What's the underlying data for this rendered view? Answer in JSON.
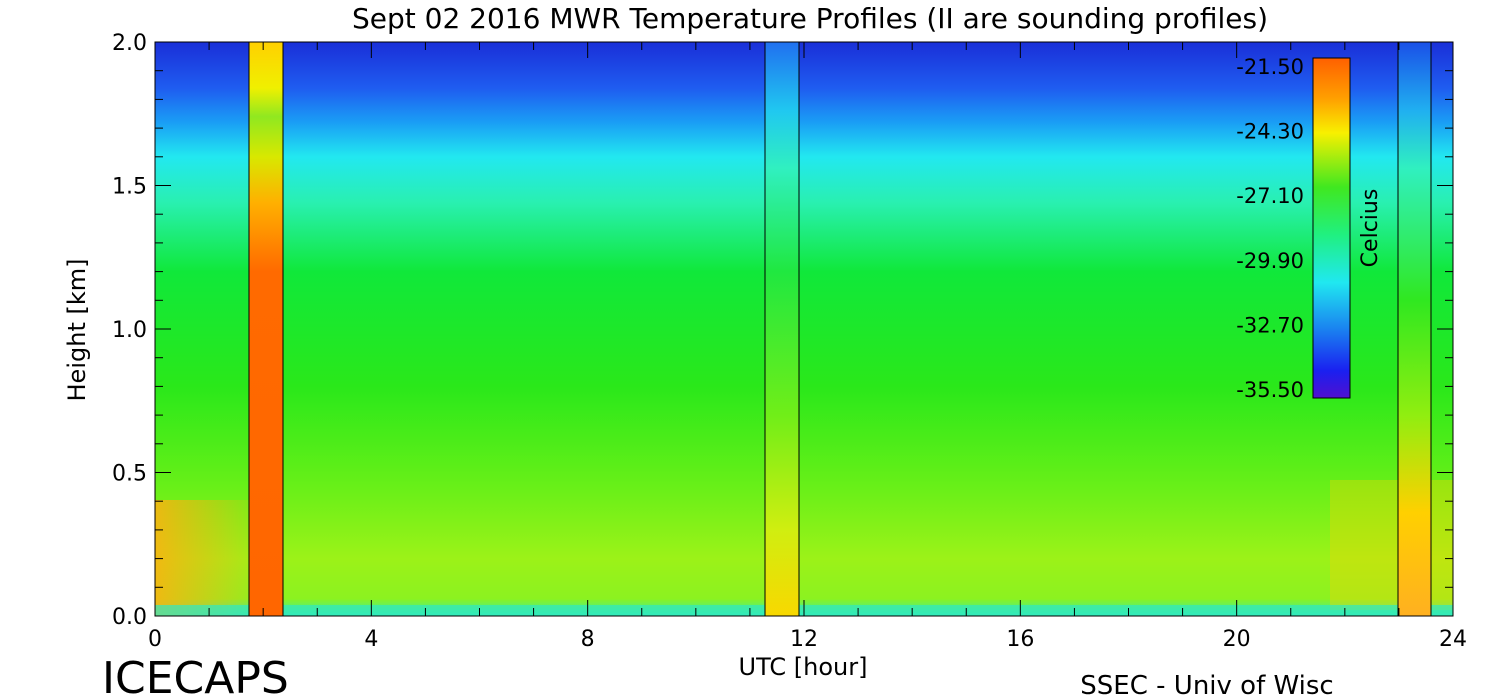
{
  "chart_data": {
    "type": "heatmap",
    "title": "Sept 02 2016 MWR Temperature Profiles (II are sounding profiles)",
    "xlabel": "UTC [hour]",
    "ylabel": "Height [km]",
    "xlim": [
      0,
      24
    ],
    "ylim": [
      0,
      2.0
    ],
    "xticks": [
      "0",
      "4",
      "8",
      "12",
      "16",
      "20",
      "24"
    ],
    "yticks": [
      "0.0",
      "0.5",
      "1.0",
      "1.5",
      "2.0"
    ],
    "colorbar": {
      "label": "Celcius",
      "ticks": [
        "-21.50",
        "-24.30",
        "-27.10",
        "-29.90",
        "-32.70",
        "-35.50"
      ],
      "range": [
        -35.5,
        -21.5
      ],
      "placement": "top-right inside plot"
    },
    "sounding_bands": [
      {
        "x_start": 1.75,
        "x_end": 2.35
      },
      {
        "x_start": 11.3,
        "x_end": 11.95
      },
      {
        "x_start": 22.95,
        "x_end": 23.55
      }
    ],
    "approx_profile_celsius": [
      {
        "height_km": 0.0,
        "temp": -26.0
      },
      {
        "height_km": 0.3,
        "temp": -25.5
      },
      {
        "height_km": 0.7,
        "temp": -26.5
      },
      {
        "height_km": 1.0,
        "temp": -27.0
      },
      {
        "height_km": 1.3,
        "temp": -28.0
      },
      {
        "height_km": 1.5,
        "temp": -30.0
      },
      {
        "height_km": 1.7,
        "temp": -31.5
      },
      {
        "height_km": 2.0,
        "temp": -34.5
      }
    ]
  },
  "footer": {
    "left": "ICECAPS",
    "right": "SSEC - Univ of Wisc"
  }
}
